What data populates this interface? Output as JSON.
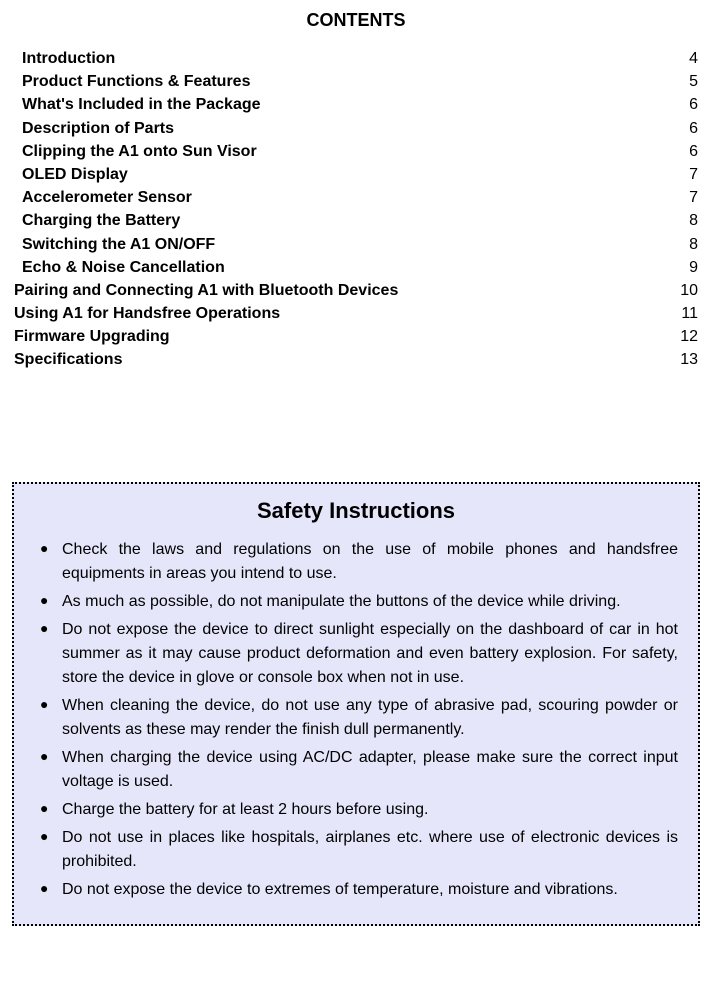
{
  "contents": {
    "heading": "CONTENTS",
    "items": [
      {
        "title": "Introduction",
        "page": "4",
        "indent": true
      },
      {
        "title": "Product Functions & Features",
        "page": "5",
        "indent": true
      },
      {
        "title": "What's Included in the Package",
        "page": "6",
        "indent": true
      },
      {
        "title": "Description of Parts",
        "page": "6",
        "indent": true
      },
      {
        "title": "Clipping the A1 onto Sun Visor",
        "page": "6",
        "indent": true
      },
      {
        "title": "OLED Display",
        "page": "7",
        "indent": true
      },
      {
        "title": "Accelerometer Sensor",
        "page": "7",
        "indent": true
      },
      {
        "title": "Charging the Battery",
        "page": "8",
        "indent": true
      },
      {
        "title": "Switching the A1 ON/OFF",
        "page": "8",
        "indent": true
      },
      {
        "title": "Echo & Noise Cancellation",
        "page": "9",
        "indent": true
      },
      {
        "title": "Pairing and Connecting A1 with Bluetooth Devices",
        "page": "10",
        "indent": false
      },
      {
        "title": "Using A1 for Handsfree Operations",
        "page": "11 ",
        "indent": false
      },
      {
        "title": "Firmware Upgrading",
        "page": "12",
        "indent": false
      },
      {
        "title": "Specifications",
        "page": "13",
        "indent": false
      }
    ]
  },
  "safety": {
    "heading": "Safety Instructions",
    "box_background": "#e6e6fa",
    "box_border_color": "#000000",
    "items": [
      "Check the laws and regulations on the use of mobile phones and handsfree equipments in areas you intend to use.",
      "As much as possible, do not manipulate the buttons of the device while driving.",
      "Do not expose the device to direct sunlight especially on the dashboard of car in hot summer as it may cause product deformation and even battery explosion. For safety, store the device in glove or console box when not in use.",
      "When cleaning the device, do not use any type of abrasive pad, scouring powder or solvents as these may render the finish dull permanently.",
      "When charging the device using AC/DC adapter, please make sure the correct input voltage is used.",
      "Charge the battery for at least 2 hours before using.",
      "Do not use in places like hospitals, airplanes etc. where use of electronic devices is prohibited.",
      "Do not expose the device to extremes of temperature, moisture and vibrations."
    ]
  },
  "styling": {
    "page_background": "#ffffff",
    "text_color": "#000000",
    "heading_fontsize": 18,
    "toc_fontsize": 16,
    "safety_heading_fontsize": 22,
    "body_fontsize": 16
  }
}
